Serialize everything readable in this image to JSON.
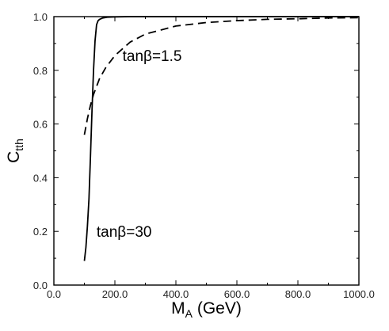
{
  "chart_data": {
    "type": "line",
    "title": "",
    "xlabel": {
      "main": "M",
      "sub": "A",
      "unit": " (GeV)"
    },
    "ylabel": {
      "main": "C",
      "sub": "tth"
    },
    "xlim": [
      0,
      1000
    ],
    "ylim": [
      0,
      1.0
    ],
    "xticks": [
      0,
      200,
      400,
      600,
      800,
      1000
    ],
    "xtick_labels": [
      "0.0",
      "200.0",
      "400.0",
      "600.0",
      "800.0",
      "1000.0"
    ],
    "yticks": [
      0,
      0.2,
      0.4,
      0.6,
      0.8,
      1.0
    ],
    "ytick_labels": [
      "0.0",
      "0.2",
      "0.4",
      "0.6",
      "0.8",
      "1.0"
    ],
    "grid": false,
    "legend": "none",
    "series": [
      {
        "name": "tanβ=30",
        "style": "solid",
        "color": "#000000",
        "x": [
          100,
          105,
          110,
          115,
          120,
          125,
          130,
          135,
          140,
          145,
          150,
          160,
          175,
          200,
          250,
          300,
          1000
        ],
        "y": [
          0.09,
          0.14,
          0.22,
          0.32,
          0.48,
          0.65,
          0.8,
          0.91,
          0.97,
          0.985,
          0.99,
          0.995,
          0.998,
          0.999,
          1.0,
          1.0,
          1.0
        ]
      },
      {
        "name": "tanβ=1.5",
        "style": "dashed",
        "color": "#000000",
        "x": [
          100,
          110,
          120,
          130,
          150,
          170,
          200,
          250,
          300,
          400,
          500,
          600,
          700,
          800,
          900,
          1000
        ],
        "y": [
          0.56,
          0.62,
          0.67,
          0.71,
          0.77,
          0.81,
          0.855,
          0.905,
          0.935,
          0.965,
          0.978,
          0.985,
          0.99,
          0.992,
          0.995,
          0.996
        ]
      }
    ],
    "annotations": [
      {
        "text": "tanβ=1.5",
        "x": 225,
        "y": 0.835
      },
      {
        "text": "tanβ=30",
        "x": 140,
        "y": 0.18
      }
    ]
  }
}
